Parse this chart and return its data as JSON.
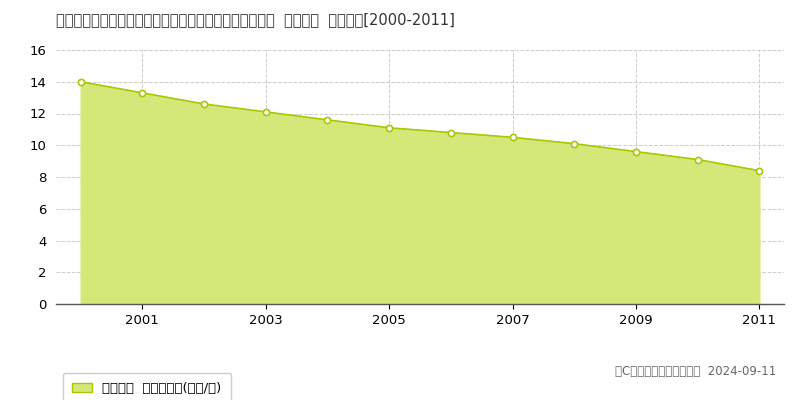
{
  "title": "栃木県芳賀郡芳賀町大字下高根沢字座王３９９８番９外  地価公示  地価推移[2000-2011]",
  "years": [
    2000,
    2001,
    2002,
    2003,
    2004,
    2005,
    2006,
    2007,
    2008,
    2009,
    2010,
    2011
  ],
  "values": [
    14.0,
    13.3,
    12.6,
    12.1,
    11.6,
    11.1,
    10.8,
    10.5,
    10.1,
    9.6,
    9.1,
    8.4
  ],
  "line_color": "#a8c800",
  "fill_color": "#d4e87a",
  "fill_alpha": 1.0,
  "marker_color": "white",
  "marker_edge_color": "#a8c800",
  "background_color": "#ffffff",
  "grid_color": "#cccccc",
  "ylim": [
    0,
    16
  ],
  "yticks": [
    0,
    2,
    4,
    6,
    8,
    10,
    12,
    14,
    16
  ],
  "xtick_labels": [
    "2001",
    "2003",
    "2005",
    "2007",
    "2009",
    "2011"
  ],
  "xtick_positions": [
    2001,
    2003,
    2005,
    2007,
    2009,
    2011
  ],
  "legend_label": "地価公示  平均坪単価(万円/坪)",
  "copyright_text": "（C）土地価格ドットコム  2024-09-11",
  "title_fontsize": 10.5,
  "tick_fontsize": 9.5,
  "legend_fontsize": 9.5,
  "copyright_fontsize": 8.5
}
